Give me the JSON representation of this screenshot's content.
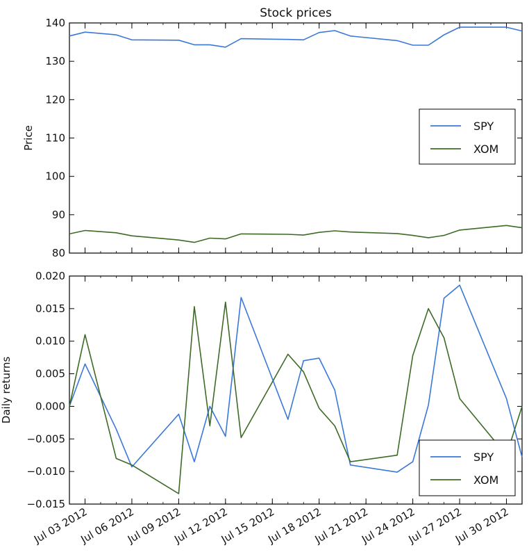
{
  "chart_data": [
    {
      "type": "line",
      "title": "Stock prices",
      "xlabel": "",
      "ylabel": "Price",
      "ylim": [
        80,
        140
      ],
      "yticks": [
        "80",
        "90",
        "100",
        "110",
        "120",
        "130",
        "140"
      ],
      "legend_position": "center-right",
      "x": [
        "2012-07-02",
        "2012-07-03",
        "2012-07-05",
        "2012-07-06",
        "2012-07-09",
        "2012-07-10",
        "2012-07-11",
        "2012-07-12",
        "2012-07-13",
        "2012-07-16",
        "2012-07-17",
        "2012-07-18",
        "2012-07-19",
        "2012-07-20",
        "2012-07-23",
        "2012-07-24",
        "2012-07-25",
        "2012-07-26",
        "2012-07-27",
        "2012-07-30",
        "2012-07-31"
      ],
      "series": [
        {
          "name": "SPY",
          "color": "#3a78d8",
          "values": [
            136.6,
            137.6,
            136.9,
            135.6,
            135.5,
            134.3,
            134.3,
            133.7,
            135.9,
            135.7,
            135.6,
            137.5,
            138.0,
            136.6,
            135.4,
            134.2,
            134.2,
            136.9,
            138.9,
            138.9,
            137.9
          ]
        },
        {
          "name": "XOM",
          "color": "#3d6b25",
          "values": [
            85.0,
            85.9,
            85.3,
            84.5,
            83.4,
            82.8,
            83.9,
            83.7,
            85.0,
            84.9,
            84.7,
            85.4,
            85.8,
            85.5,
            85.1,
            84.6,
            84.0,
            84.6,
            86.0,
            87.2,
            86.6
          ]
        }
      ]
    },
    {
      "type": "line",
      "title": "",
      "xlabel": "",
      "ylabel": "Daily returns",
      "ylim": [
        -0.015,
        0.02
      ],
      "yticks": [
        "−0.015",
        "−0.010",
        "−0.005",
        "0.000",
        "0.005",
        "0.010",
        "0.015",
        "0.020"
      ],
      "legend_position": "lower-right",
      "x": [
        "2012-07-02",
        "2012-07-03",
        "2012-07-05",
        "2012-07-06",
        "2012-07-09",
        "2012-07-10",
        "2012-07-11",
        "2012-07-12",
        "2012-07-13",
        "2012-07-16",
        "2012-07-17",
        "2012-07-18",
        "2012-07-19",
        "2012-07-20",
        "2012-07-23",
        "2012-07-24",
        "2012-07-25",
        "2012-07-26",
        "2012-07-27",
        "2012-07-30",
        "2012-07-31"
      ],
      "xticks": [
        "Jul 03 2012",
        "Jul 06 2012",
        "Jul 09 2012",
        "Jul 12 2012",
        "Jul 15 2012",
        "Jul 18 2012",
        "Jul 21 2012",
        "Jul 24 2012",
        "Jul 27 2012",
        "Jul 30 2012"
      ],
      "xtick_dates": [
        "2012-07-03",
        "2012-07-06",
        "2012-07-09",
        "2012-07-12",
        "2012-07-15",
        "2012-07-18",
        "2012-07-21",
        "2012-07-24",
        "2012-07-27",
        "2012-07-30"
      ],
      "series": [
        {
          "name": "SPY",
          "color": "#3a78d8",
          "values": [
            0.0,
            0.0065,
            -0.0035,
            -0.0093,
            -0.0012,
            -0.0085,
            0.0,
            -0.0046,
            0.0167,
            -0.002,
            0.007,
            0.0074,
            0.0025,
            -0.009,
            -0.0101,
            -0.0085,
            0.0002,
            0.0166,
            0.0186,
            0.0012,
            -0.0078
          ]
        },
        {
          "name": "XOM",
          "color": "#3d6b25",
          "values": [
            0.0,
            0.011,
            -0.008,
            -0.009,
            -0.0134,
            0.0153,
            -0.003,
            0.016,
            -0.0048,
            0.008,
            0.0053,
            -0.0003,
            -0.003,
            -0.0085,
            -0.0075,
            0.0078,
            0.015,
            0.0105,
            0.0012,
            -0.0075,
            0.0
          ]
        }
      ]
    }
  ]
}
